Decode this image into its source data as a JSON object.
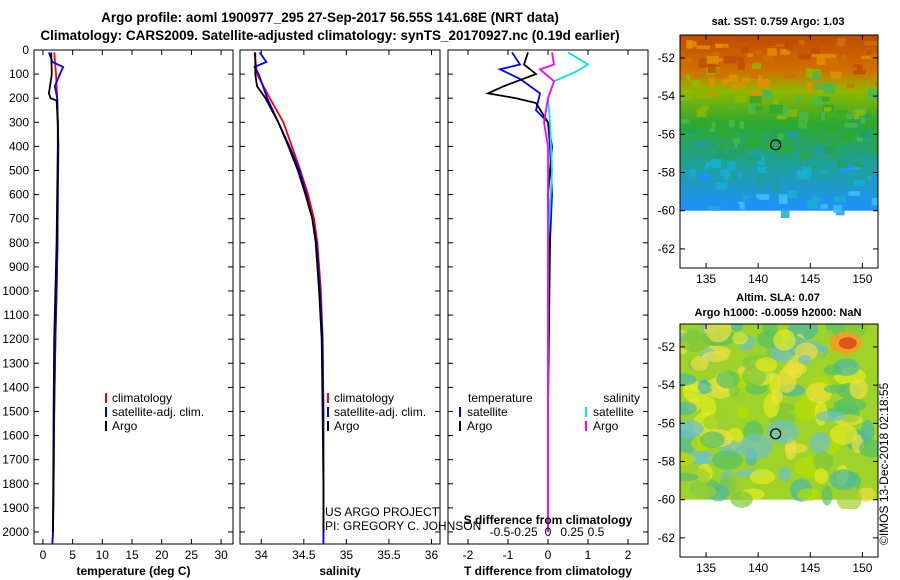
{
  "title_line1": "Argo profile: aoml 1900977_295 27-Sep-2017 56.55S 141.68E (NRT data)",
  "title_line2": "Climatology: CARS2009. Satellite-adjusted climatology: synTS_20170927.nc (0.19d earlier)",
  "colors": {
    "climatology": "#ff0000",
    "satellite": "#0000ff",
    "argo": "#000000",
    "s_satellite": "#00e5e5",
    "s_argo": "#ff00ff"
  },
  "depth_ticks": [
    0,
    100,
    200,
    300,
    400,
    500,
    600,
    700,
    800,
    900,
    1000,
    1100,
    1200,
    1300,
    1400,
    1500,
    1600,
    1700,
    1800,
    1900,
    2000
  ],
  "chart_data": [
    {
      "type": "line",
      "xlabel": "temperature (deg C)",
      "xlim": [
        -1.5,
        32
      ],
      "xticks": [
        0,
        5,
        10,
        15,
        20,
        25,
        30
      ],
      "ylim": [
        2050,
        0
      ],
      "legend": [
        "climatology",
        "satellite-adj. clim.",
        "Argo"
      ],
      "series": [
        {
          "name": "climatology",
          "x": [
            1.9,
            2.2,
            2.4,
            2.5,
            2.55,
            2.5,
            2.45,
            2.3,
            2.1,
            1.9,
            1.8,
            1.7,
            1.6
          ],
          "y": [
            10,
            100,
            200,
            300,
            400,
            600,
            800,
            1000,
            1200,
            1500,
            1800,
            2000,
            2050
          ]
        },
        {
          "name": "satellite-adj. clim.",
          "x": [
            1.0,
            1.6,
            3.4,
            2.0,
            2.4,
            2.5,
            2.6,
            2.5,
            2.45,
            2.3,
            2.1,
            1.9,
            1.8,
            1.7,
            1.6
          ],
          "y": [
            10,
            50,
            70,
            150,
            200,
            300,
            400,
            600,
            800,
            1000,
            1200,
            1500,
            1800,
            2000,
            2050
          ]
        },
        {
          "name": "Argo",
          "x": [
            1.4,
            1.5,
            1.2,
            1.0,
            1.3,
            2.3,
            2.5,
            2.5,
            2.4,
            2.3,
            2.1,
            1.9,
            1.8,
            1.7
          ],
          "y": [
            10,
            100,
            150,
            180,
            200,
            210,
            300,
            400,
            600,
            800,
            1000,
            1200,
            1500,
            2000
          ]
        }
      ]
    },
    {
      "type": "line",
      "xlabel": "salinity",
      "xlim": [
        33.75,
        36.1
      ],
      "xticks": [
        34,
        34.5,
        35,
        35.5,
        36
      ],
      "ylim": [
        2050,
        0
      ],
      "legend": [
        "climatology",
        "satellite-adj. clim.",
        "Argo"
      ],
      "series": [
        {
          "name": "climatology",
          "x": [
            33.92,
            33.95,
            34.1,
            34.26,
            34.36,
            34.46,
            34.55,
            34.62,
            34.66,
            34.7,
            34.72,
            34.73,
            34.73,
            34.73
          ],
          "y": [
            10,
            100,
            200,
            300,
            400,
            500,
            600,
            700,
            800,
            1000,
            1200,
            1500,
            1800,
            2050
          ]
        },
        {
          "name": "satellite-adj. clim.",
          "x": [
            33.98,
            34.06,
            33.92,
            33.97,
            34.07,
            34.2,
            34.33,
            34.45,
            34.53,
            34.6,
            34.65,
            34.69,
            34.72,
            34.73,
            34.73,
            34.73
          ],
          "y": [
            10,
            50,
            70,
            100,
            200,
            300,
            400,
            500,
            600,
            700,
            800,
            1000,
            1200,
            1500,
            1800,
            2050
          ]
        },
        {
          "name": "Argo",
          "x": [
            33.93,
            33.93,
            33.95,
            34.05,
            34.2,
            34.32,
            34.43,
            34.52,
            34.6,
            34.64,
            34.68,
            34.71,
            34.72,
            34.73,
            34.73
          ],
          "y": [
            10,
            100,
            150,
            200,
            300,
            400,
            500,
            600,
            700,
            800,
            1000,
            1200,
            1500,
            1800,
            2000
          ]
        }
      ]
    },
    {
      "type": "line",
      "xlabel": "T difference from climatology",
      "secondary_xlabel": "S difference from climatology",
      "xlim": [
        -2.5,
        2.5
      ],
      "xticks": [
        -2,
        -1,
        0,
        1,
        2
      ],
      "secondary_xticks": [
        -0.5,
        -0.25,
        0,
        0.25,
        0.5
      ],
      "ylim": [
        2050,
        0
      ],
      "legend_left_title": "temperature",
      "legend_left": [
        "satellite",
        "Argo"
      ],
      "legend_right_title": "salinity",
      "legend_right": [
        "satellite",
        "Argo"
      ],
      "series": [
        {
          "name": "temperature satellite",
          "x": [
            -0.9,
            -0.7,
            -1.2,
            -0.7,
            -0.2,
            -0.3,
            0.0,
            0.05,
            0.1,
            0.05,
            0.0,
            0.0,
            0.0
          ],
          "y": [
            10,
            60,
            80,
            120,
            180,
            250,
            300,
            400,
            600,
            800,
            1000,
            1500,
            2000
          ]
        },
        {
          "name": "temperature Argo",
          "x": [
            -0.5,
            -0.6,
            -0.3,
            -1.1,
            -1.5,
            -0.8,
            -0.3,
            0.0,
            0.1,
            0.0,
            0.05,
            0.0,
            0.0
          ],
          "y": [
            10,
            60,
            100,
            150,
            180,
            200,
            220,
            300,
            400,
            600,
            800,
            1500,
            2000
          ]
        },
        {
          "name": "salinity satellite",
          "x": [
            0.5,
            0.8,
            1.0,
            0.7,
            0.15,
            0.0,
            0.05,
            0.1,
            0.0,
            0.0,
            0.0,
            0.0
          ],
          "y": [
            10,
            40,
            60,
            90,
            130,
            200,
            300,
            500,
            800,
            1000,
            1500,
            2000
          ]
        },
        {
          "name": "salinity Argo",
          "x": [
            0.1,
            0.15,
            -0.2,
            0.15,
            0.0,
            -0.1,
            0.0,
            0.0,
            0.0,
            0.0
          ],
          "y": [
            10,
            60,
            80,
            130,
            200,
            300,
            400,
            800,
            1500,
            2000
          ]
        }
      ]
    },
    {
      "type": "heatmap",
      "title": "sat. SST: 0.759 Argo: 1.03",
      "xticks": [
        135,
        140,
        145,
        150
      ],
      "yticks": [
        -52,
        -54,
        -56,
        -58,
        -60,
        -62
      ],
      "xlim": [
        132.5,
        151.5
      ],
      "ylim": [
        -63,
        -50.8
      ],
      "marker": {
        "lon": 141.68,
        "lat": -56.55
      }
    },
    {
      "type": "heatmap",
      "title": "Altim. SLA: 0.07",
      "subtitle": "Argo h1000: -0.0059 h2000: NaN",
      "xticks": [
        135,
        140,
        145,
        150
      ],
      "yticks": [
        -52,
        -54,
        -56,
        -58,
        -60,
        -62
      ],
      "xlim": [
        132.5,
        151.5
      ],
      "ylim": [
        -63,
        -50.8
      ],
      "marker": {
        "lon": 141.68,
        "lat": -56.55
      }
    }
  ],
  "notes": {
    "project": "US ARGO PROJECT",
    "pi": "PI: GREGORY C. JOHNSON",
    "stamp": "©IMOS 13-Dec-2018 02:18:55"
  }
}
